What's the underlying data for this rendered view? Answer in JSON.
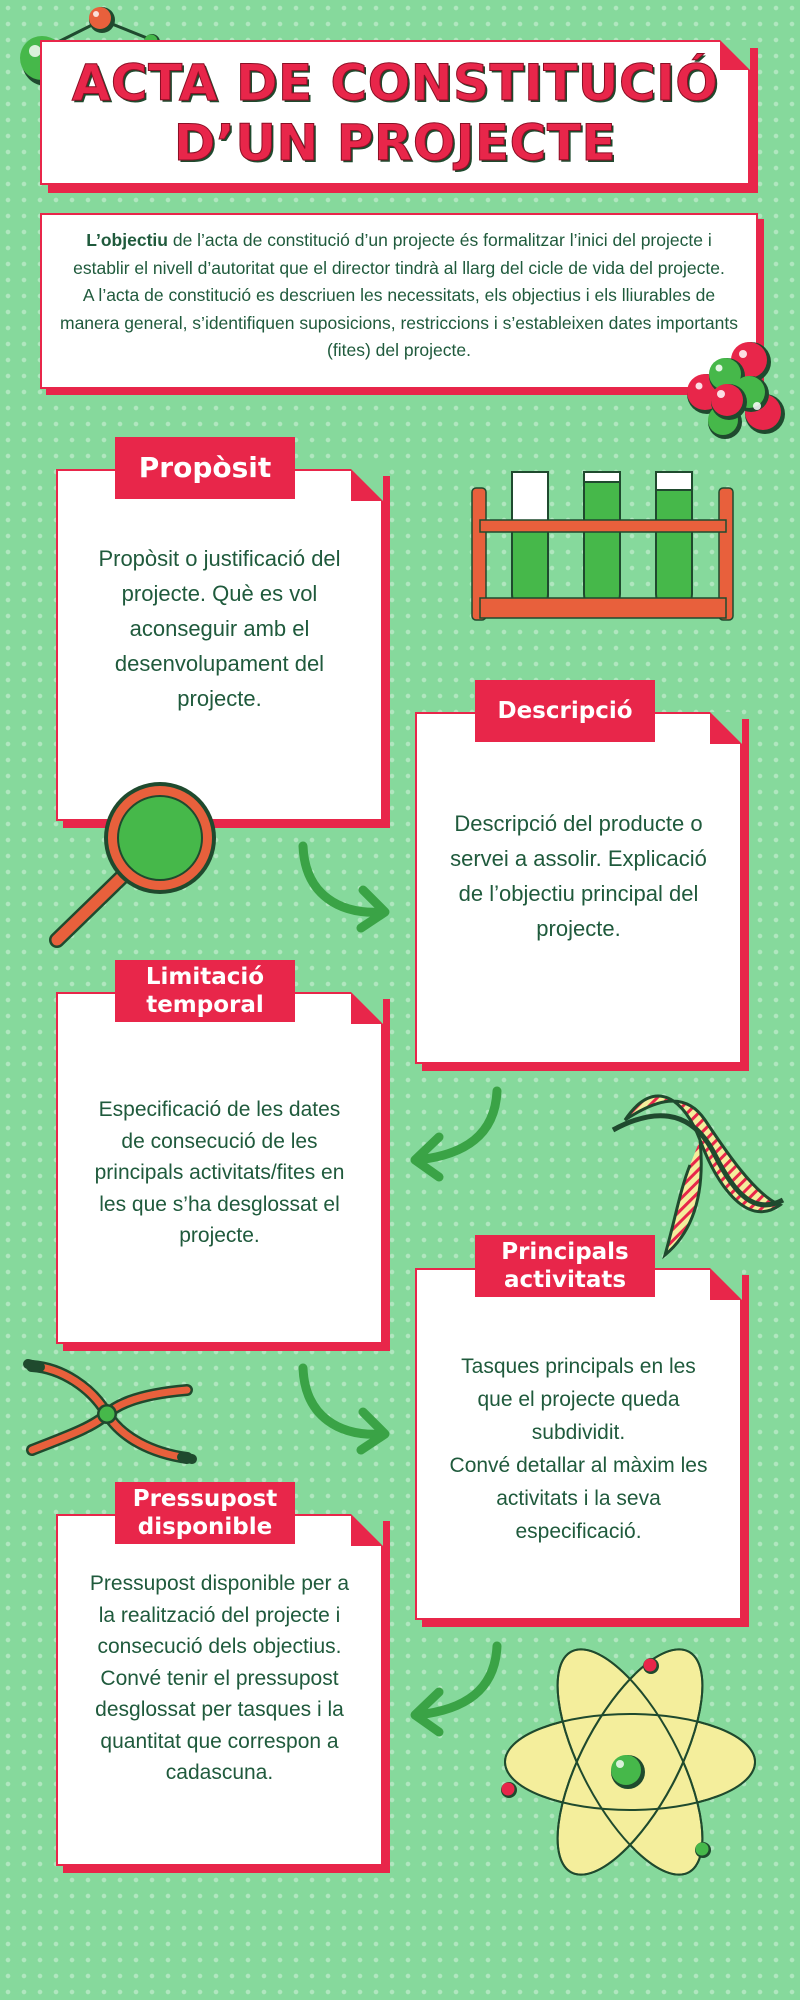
{
  "title": {
    "line1": "ACTA DE CONSTITUCIÓ",
    "line2": "D’UN PROJECTE"
  },
  "intro": {
    "lead_bold": "L’objectiu",
    "paragraph1_rest": " de l’acta de constitució d’un projecte és formalitzar l’inici del projecte i establir el nivell d’autoritat que el director tindrà al llarg del cicle de vida del projecte.",
    "paragraph2": "A l’acta de constitució es descriuen les necessitats, els objectius i els lliurables de manera general, s’identifiquen suposicions, restriccions i s’estableixen dates importants (fites) del projecte."
  },
  "sections": {
    "proposit": {
      "label": "Propòsit",
      "text": "Propòsit o justificació del projecte. Què es vol aconseguir amb el desenvolupament del projecte."
    },
    "descripcio": {
      "label": "Descripció",
      "text": "Descripció del producte o servei a assolir.  Explicació de l’objectiu principal del projecte."
    },
    "limitacio": {
      "label_line1": "Limitació",
      "label_line2": "temporal",
      "text": "Especificació de les dates de consecució de les principals activitats/fites en les que s’ha desglossat el projecte."
    },
    "activitats": {
      "label_line1": "Principals",
      "label_line2": "activitats",
      "text_line1": "Tasques principals en les que el projecte queda subdividit.",
      "text_line2": "Convé detallar al màxim les activitats i la seva especificació."
    },
    "pressupost": {
      "label_line1": "Pressupost",
      "label_line2": "disponible",
      "text_line1": "Pressupost disponible per a la realització del projecte i consecució dels objectius.",
      "text_line2": "Convé tenir el pressupost desglossat per tasques i la quantitat que correspon a cadascuna."
    }
  },
  "colors": {
    "background": "#86d99c",
    "accent_red": "#e8264a",
    "text_green": "#1f5a3c",
    "bright_green": "#46b84a",
    "orange": "#e8603c"
  },
  "icons": [
    "molecule-icon",
    "molecule-cluster-icon",
    "test-tubes-icon",
    "magnifier-icon",
    "dna-icon",
    "tweezers-icon",
    "atom-icon",
    "arrow-icon"
  ]
}
